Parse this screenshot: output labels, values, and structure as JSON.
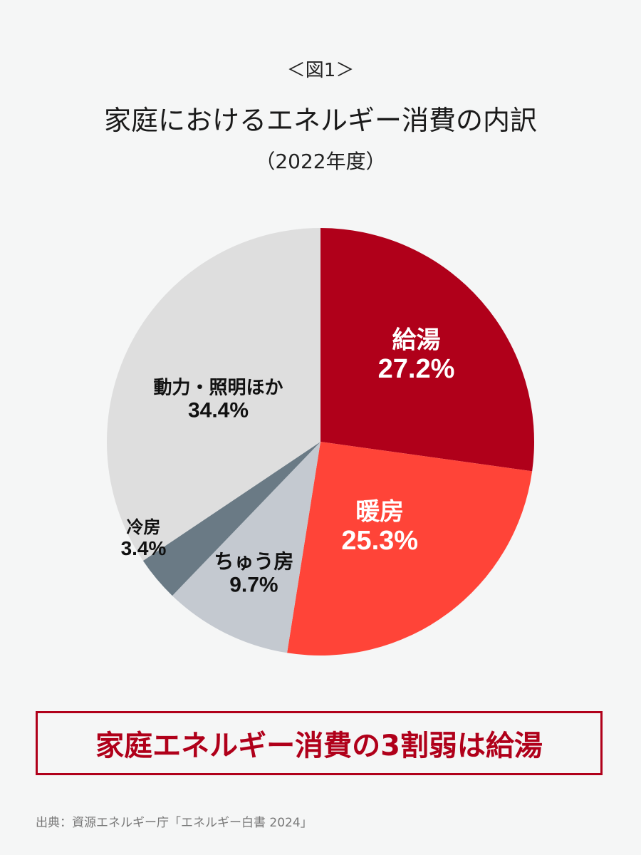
{
  "figure_label": "＜図1＞",
  "title": "家庭におけるエネルギー消費の内訳",
  "subtitle": "（2022年度）",
  "chart_data": {
    "type": "pie",
    "unit": "%",
    "start": "top",
    "direction": "clockwise",
    "slices": [
      {
        "label": "給湯",
        "value": 27.2,
        "value_label": "27.2%",
        "color": "#b0001a",
        "text_color": "#ffffff"
      },
      {
        "label": "暖房",
        "value": 25.3,
        "value_label": "25.3%",
        "color": "#ff4438",
        "text_color": "#ffffff"
      },
      {
        "label": "ちゅう房",
        "value": 9.7,
        "value_label": "9.7%",
        "color": "#c4c9d0",
        "text_color": "#111111"
      },
      {
        "label": "冷房",
        "value": 3.4,
        "value_label": "3.4%",
        "color": "#6a7a85",
        "text_color": "#111111"
      },
      {
        "label": "動力・照明ほか",
        "value": 34.4,
        "value_label": "34.4%",
        "color": "#dedede",
        "text_color": "#111111"
      }
    ]
  },
  "callout": "家庭エネルギー消費の3割弱は給湯",
  "source": "出典：資源エネルギー庁「エネルギー白書 2024」"
}
